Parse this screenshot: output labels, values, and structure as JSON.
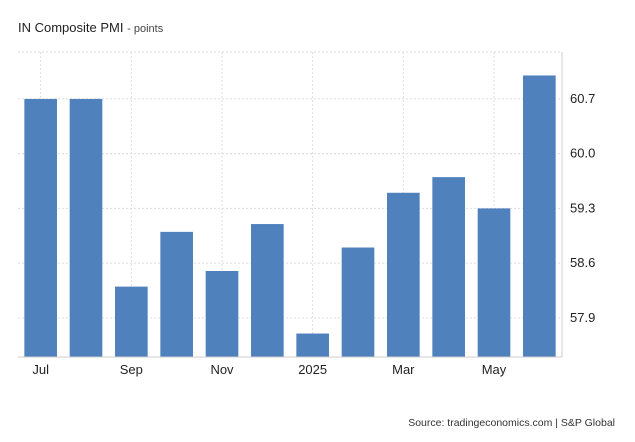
{
  "header": {
    "title": "IN Composite PMI",
    "unit": "points"
  },
  "footer": {
    "source": "Source: tradingeconomics.com | S&P Global"
  },
  "colors": {
    "bar": "#4f81bd",
    "grid": "#dddddd",
    "axis": "#cccccc"
  },
  "chart_data": {
    "type": "bar",
    "title": "IN Composite PMI",
    "ylabel": "points",
    "categories": [
      "2024-07",
      "2024-08",
      "2024-09",
      "2024-10",
      "2024-11",
      "2024-12",
      "2025-01",
      "2025-02",
      "2025-03",
      "2025-04",
      "2025-05",
      "2025-06"
    ],
    "x_tick_labels": [
      {
        "category": "2024-07",
        "label": "Jul"
      },
      {
        "category": "2024-09",
        "label": "Sep"
      },
      {
        "category": "2024-11",
        "label": "Nov"
      },
      {
        "category": "2025-01",
        "label": "2025"
      },
      {
        "category": "2025-03",
        "label": "Mar"
      },
      {
        "category": "2025-05",
        "label": "May"
      }
    ],
    "values": [
      60.7,
      60.7,
      58.3,
      59.0,
      58.5,
      59.1,
      57.7,
      58.8,
      59.5,
      59.7,
      59.3,
      61.0
    ],
    "ylim": [
      57.4,
      61.3
    ],
    "y_ticks": [
      57.9,
      58.6,
      59.3,
      60.0,
      60.7
    ],
    "y_axis_side": "right",
    "grid": true,
    "legend": "none"
  }
}
